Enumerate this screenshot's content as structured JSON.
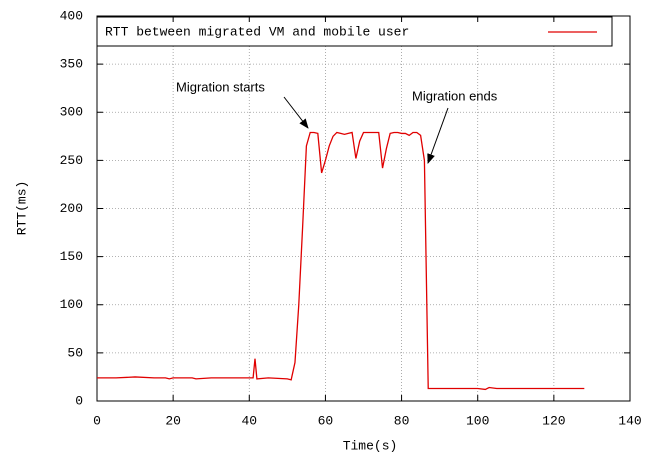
{
  "chart_data": {
    "type": "line",
    "xlabel": "Time(s)",
    "ylabel": "RTT(ms)",
    "annotations": [
      "Migration starts",
      "Migration ends"
    ],
    "x": [
      0,
      5,
      10,
      15,
      18,
      19,
      20,
      25,
      26,
      30,
      35,
      40,
      41,
      41.5,
      42,
      45,
      50,
      51,
      52,
      53,
      54,
      55,
      56,
      57,
      58,
      59,
      60,
      61,
      62,
      63,
      64,
      65,
      66,
      67,
      68,
      69,
      70,
      71,
      72,
      73,
      74,
      75,
      76,
      77,
      78,
      79,
      80,
      81,
      82,
      83,
      84,
      85,
      86,
      87,
      90,
      95,
      100,
      102,
      103,
      105,
      110,
      115,
      120,
      125,
      128
    ],
    "series": [
      {
        "name": "RTT between migrated VM and mobile user",
        "color": "#e00000",
        "values": [
          24,
          24,
          25,
          24,
          24,
          23,
          24,
          24,
          23,
          24,
          24,
          24,
          24,
          44,
          23,
          24,
          23,
          22,
          40,
          100,
          180,
          265,
          279,
          279,
          278,
          237,
          250,
          265,
          275,
          279,
          278,
          277,
          278,
          279,
          252,
          270,
          279,
          279,
          279,
          279,
          279,
          242,
          262,
          278,
          279,
          279,
          278,
          278,
          276,
          279,
          279,
          276,
          250,
          13,
          13,
          13,
          13,
          12,
          14,
          13,
          13,
          13,
          13,
          13,
          13
        ]
      }
    ],
    "xlim": [
      0,
      140
    ],
    "xticks": [
      0,
      20,
      40,
      60,
      80,
      100,
      120,
      140
    ],
    "ylim": [
      0,
      400
    ],
    "yticks": [
      0,
      50,
      100,
      150,
      200,
      250,
      300,
      350,
      400
    ],
    "grid": true,
    "legend": "top-left"
  }
}
